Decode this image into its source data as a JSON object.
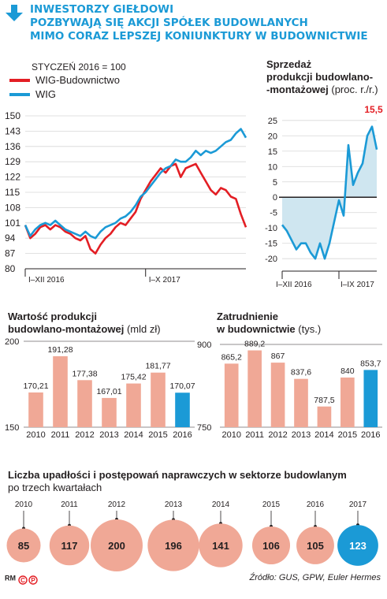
{
  "header": {
    "title_lines": [
      "INWESTORZY GIEŁDOWI",
      "POZBYWAJĄ SIĘ AKCJI SPÓŁEK BUDOWLANYCH",
      "MIMO CORAZ LEPSZEJ KONIUNKTURY W BUDOWNICTWIE"
    ],
    "accent_color": "#1b9ad6"
  },
  "chart_data": [
    {
      "id": "wig",
      "type": "line",
      "note": "STYCZEŃ 2016 = 100",
      "yticks": [
        150,
        143,
        136,
        129,
        122,
        115,
        108,
        101,
        94,
        87,
        80
      ],
      "ylim": [
        80,
        150
      ],
      "xlabels": [
        "I–XII 2016",
        "I–X 2017"
      ],
      "x_range_months": [
        0,
        22
      ],
      "grid": true,
      "series": [
        {
          "name": "WIG-Budownictwo",
          "color": "#e31e24",
          "x": [
            0,
            0.5,
            1,
            1.5,
            2,
            2.5,
            3,
            3.5,
            4,
            4.5,
            5,
            5.5,
            6,
            6.5,
            7,
            7.5,
            8,
            8.5,
            9,
            9.5,
            10,
            10.5,
            11,
            11.5,
            12,
            12.5,
            13,
            13.5,
            14,
            14.5,
            15,
            15.5,
            16,
            16.5,
            17,
            17.5,
            18,
            18.5,
            19,
            19.5,
            20,
            20.5,
            21,
            21.5,
            22
          ],
          "y": [
            100,
            94,
            96,
            99,
            100,
            98,
            100,
            99,
            97,
            96,
            94,
            93,
            95,
            89,
            87,
            91,
            94,
            96,
            99,
            101,
            100,
            103,
            106,
            112,
            116,
            120,
            123,
            126,
            124,
            127,
            128,
            122,
            126,
            127,
            128,
            124,
            120,
            116,
            114,
            117,
            116,
            113,
            112,
            105,
            99
          ]
        },
        {
          "name": "WIG",
          "color": "#1b9ad6",
          "x": [
            0,
            0.5,
            1,
            1.5,
            2,
            2.5,
            3,
            3.5,
            4,
            4.5,
            5,
            5.5,
            6,
            6.5,
            7,
            7.5,
            8,
            8.5,
            9,
            9.5,
            10,
            10.5,
            11,
            11.5,
            12,
            12.5,
            13,
            13.5,
            14,
            14.5,
            15,
            15.5,
            16,
            16.5,
            17,
            17.5,
            18,
            18.5,
            19,
            19.5,
            20,
            20.5,
            21,
            21.5,
            22
          ],
          "y": [
            100,
            95,
            98,
            100,
            101,
            100,
            102,
            100,
            98,
            97,
            96,
            95,
            97,
            95,
            94,
            97,
            99,
            100,
            101,
            103,
            104,
            106,
            109,
            113,
            115,
            118,
            121,
            124,
            126,
            127,
            130,
            129,
            129,
            131,
            134,
            132,
            134,
            133,
            134,
            136,
            138,
            139,
            142,
            144,
            140
          ]
        }
      ]
    },
    {
      "id": "sprzedaz",
      "type": "area",
      "title": "Sprzedaż produkcji budowlano--montażowej",
      "title_lines": [
        "Sprzedaż",
        "produkcji budowlano-",
        "-montażowej"
      ],
      "unit": "(proc. r./r.)",
      "yticks": [
        25,
        20,
        15,
        10,
        5,
        0,
        -5,
        -10,
        -15,
        -20
      ],
      "ylim": [
        -22,
        27
      ],
      "xlabels": [
        "I–XII 2016",
        "I–IX 2017"
      ],
      "highlight_label": "15,5",
      "highlight_color": "#e31e24",
      "series": [
        {
          "name": "",
          "color": "#1b9ad6",
          "x": [
            0,
            1,
            2,
            3,
            4,
            5,
            6,
            7,
            8,
            9,
            10,
            11,
            12,
            13,
            14,
            15,
            16,
            17,
            18,
            19,
            20
          ],
          "y": [
            -9,
            -11,
            -14,
            -17,
            -15,
            -15,
            -18,
            -20,
            -15,
            -20,
            -15,
            -8,
            -1,
            -6,
            17,
            4,
            8,
            11,
            20,
            23,
            15.5
          ]
        }
      ]
    },
    {
      "id": "wartosc",
      "type": "bar",
      "title_lines": [
        "Wartość produkcji",
        "budowlano-montażowej"
      ],
      "unit": "(mld zł)",
      "categories": [
        "2010",
        "2011",
        "2012",
        "2013",
        "2014",
        "2015",
        "2016"
      ],
      "values": [
        170.21,
        191.28,
        177.38,
        167.01,
        175.42,
        181.77,
        170.07
      ],
      "labels": [
        "170,21",
        "191,28",
        "177,38",
        "167,01",
        "175,42",
        "181,77",
        "170,07"
      ],
      "yticks": [
        200,
        150
      ],
      "ylim": [
        150,
        200
      ],
      "colors": [
        "#f0a896",
        "#f0a896",
        "#f0a896",
        "#f0a896",
        "#f0a896",
        "#f0a896",
        "#1b9ad6"
      ]
    },
    {
      "id": "zatrudnienie",
      "type": "bar",
      "title_lines": [
        "Zatrudnienie",
        "w budownictwie"
      ],
      "unit": "(tys.)",
      "categories": [
        "2010",
        "2011",
        "2012",
        "2013",
        "2014",
        "2015",
        "2016"
      ],
      "values": [
        865.2,
        889.2,
        867,
        837.6,
        787.5,
        840,
        853.7
      ],
      "labels": [
        "865,2",
        "889,2",
        "867",
        "837,6",
        "787,5",
        "840",
        "853,7"
      ],
      "yticks": [
        900,
        750
      ],
      "ylim": [
        750,
        900
      ],
      "colors": [
        "#f0a896",
        "#f0a896",
        "#f0a896",
        "#f0a896",
        "#f0a896",
        "#f0a896",
        "#1b9ad6"
      ]
    },
    {
      "id": "upadlosci",
      "type": "bubble",
      "title": "Liczba upadłości i postępowań naprawczych w sektorze budowlanym",
      "subtitle": "po trzech kwartałach",
      "categories": [
        "2010",
        "2011",
        "2012",
        "2013",
        "2014",
        "2015",
        "2016",
        "2017"
      ],
      "values": [
        85,
        117,
        200,
        196,
        141,
        106,
        105,
        123
      ],
      "colors": [
        "#f0a896",
        "#f0a896",
        "#f0a896",
        "#f0a896",
        "#f0a896",
        "#f0a896",
        "#f0a896",
        "#1b9ad6"
      ]
    }
  ],
  "footer": {
    "brand": "RM",
    "brand_marks": [
      "C",
      "P"
    ],
    "source": "Źródło: GUS, GPW, Euler Hermes"
  }
}
